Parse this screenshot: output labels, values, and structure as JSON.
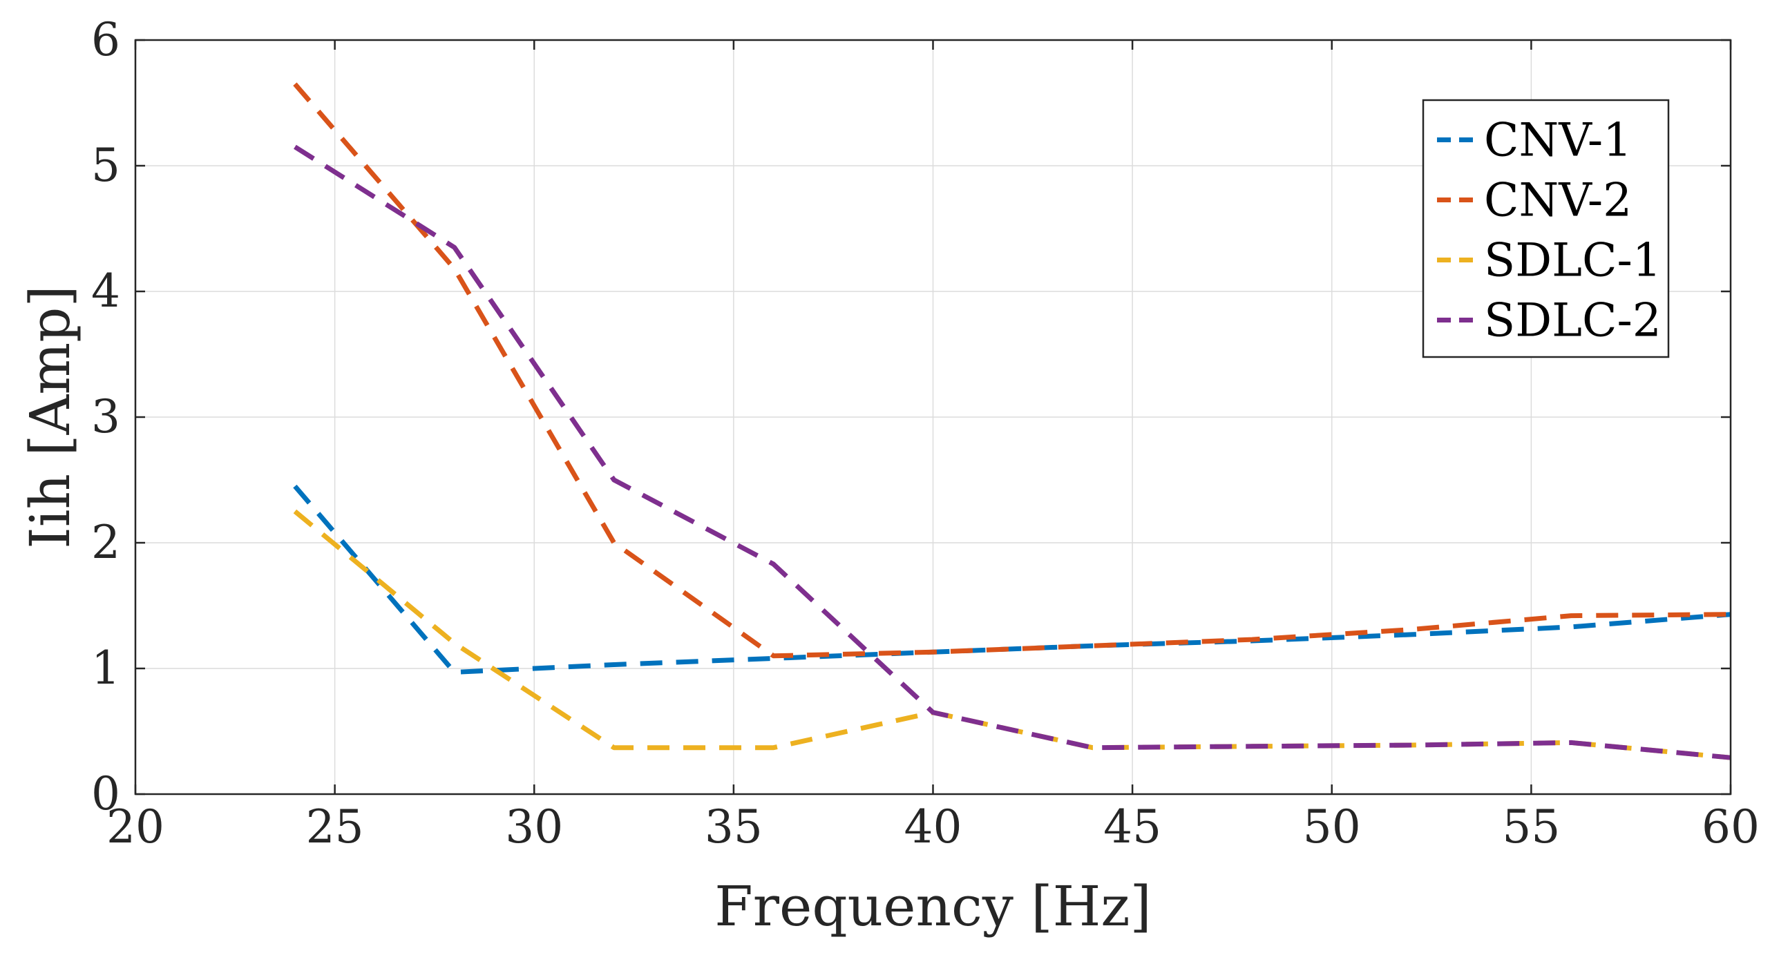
{
  "chart_data": {
    "type": "line",
    "title": "",
    "xlabel": "Frequency [Hz]",
    "ylabel": "Iih [Amp]",
    "xlim": [
      20,
      60
    ],
    "ylim": [
      0,
      6
    ],
    "xticks": [
      20,
      25,
      30,
      35,
      40,
      45,
      50,
      55,
      60
    ],
    "yticks": [
      0,
      1,
      2,
      3,
      4,
      5,
      6
    ],
    "grid": true,
    "legend_position": "top-right",
    "line_style": "dashed",
    "series": [
      {
        "name": "CNV-1",
        "color": "#0072BD",
        "x": [
          24,
          28,
          32,
          36,
          40,
          44,
          48,
          52,
          56,
          60
        ],
        "y": [
          2.45,
          0.97,
          1.03,
          1.08,
          1.13,
          1.18,
          1.22,
          1.27,
          1.33,
          1.43
        ]
      },
      {
        "name": "CNV-2",
        "color": "#D95319",
        "x": [
          24,
          28,
          32,
          36,
          40,
          44,
          48,
          52,
          56,
          60
        ],
        "y": [
          5.65,
          4.18,
          2.0,
          1.1,
          1.13,
          1.18,
          1.23,
          1.31,
          1.42,
          1.43
        ]
      },
      {
        "name": "SDLC-1",
        "color": "#EDB120",
        "x": [
          24,
          28,
          32,
          36,
          40,
          44,
          48,
          52,
          56,
          60
        ],
        "y": [
          2.25,
          1.2,
          0.37,
          0.37,
          0.65,
          0.37,
          0.38,
          0.39,
          0.41,
          0.29
        ]
      },
      {
        "name": "SDLC-2",
        "color": "#7E2F8E",
        "x": [
          24,
          28,
          32,
          36,
          40,
          44,
          48,
          52,
          56,
          60
        ],
        "y": [
          5.15,
          4.35,
          2.5,
          1.83,
          0.65,
          0.37,
          0.38,
          0.39,
          0.41,
          0.29
        ]
      }
    ]
  }
}
